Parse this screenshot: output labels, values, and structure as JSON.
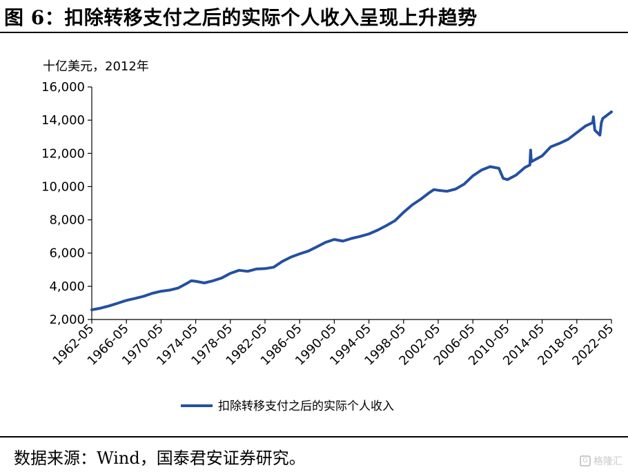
{
  "header": {
    "title": "图 6：扣除转移支付之后的实际个人收入呈现上升趋势"
  },
  "footer": {
    "source": "数据来源：Wind，国泰君安证券研究。",
    "watermark_text": "格隆汇",
    "watermark_icon": "G"
  },
  "colors": {
    "series": "#2450a0",
    "axis": "#000000"
  },
  "chart_data": {
    "type": "line",
    "title": "",
    "unit_label": "十亿美元，2012年",
    "xlabel": "",
    "ylabel": "",
    "x_start": "1962-05",
    "x_end": "2022-05",
    "x_ticks": [
      "1962-05",
      "1966-05",
      "1970-05",
      "1974-05",
      "1978-05",
      "1982-05",
      "1986-05",
      "1990-05",
      "1994-05",
      "1998-05",
      "2002-05",
      "2006-05",
      "2010-05",
      "2014-05",
      "2018-05",
      "2022-05"
    ],
    "ylim": [
      2000,
      16000
    ],
    "y_ticks": [
      "2,000",
      "4,000",
      "6,000",
      "8,000",
      "10,000",
      "12,000",
      "14,000",
      "16,000"
    ],
    "y_tick_values": [
      2000,
      4000,
      6000,
      8000,
      10000,
      12000,
      14000,
      16000
    ],
    "grid": false,
    "legend_position": "bottom-center",
    "series": [
      {
        "name": "扣除转移支付之后的实际个人收入",
        "points": [
          [
            "1962-05",
            2580
          ],
          [
            "1963-05",
            2680
          ],
          [
            "1964-05",
            2820
          ],
          [
            "1965-05",
            2980
          ],
          [
            "1966-05",
            3150
          ],
          [
            "1967-05",
            3270
          ],
          [
            "1968-05",
            3400
          ],
          [
            "1969-05",
            3580
          ],
          [
            "1970-05",
            3700
          ],
          [
            "1971-05",
            3770
          ],
          [
            "1972-05",
            3900
          ],
          [
            "1973-05",
            4180
          ],
          [
            "1973-11",
            4330
          ],
          [
            "1974-05",
            4300
          ],
          [
            "1975-05",
            4200
          ],
          [
            "1976-05",
            4330
          ],
          [
            "1977-05",
            4500
          ],
          [
            "1978-05",
            4780
          ],
          [
            "1979-05",
            4960
          ],
          [
            "1980-05",
            4900
          ],
          [
            "1981-05",
            5040
          ],
          [
            "1982-05",
            5060
          ],
          [
            "1983-05",
            5150
          ],
          [
            "1984-05",
            5500
          ],
          [
            "1985-05",
            5760
          ],
          [
            "1986-05",
            5950
          ],
          [
            "1987-05",
            6120
          ],
          [
            "1988-05",
            6380
          ],
          [
            "1989-05",
            6650
          ],
          [
            "1990-05",
            6820
          ],
          [
            "1991-05",
            6720
          ],
          [
            "1992-05",
            6880
          ],
          [
            "1993-05",
            7000
          ],
          [
            "1994-05",
            7150
          ],
          [
            "1995-05",
            7380
          ],
          [
            "1996-05",
            7650
          ],
          [
            "1997-05",
            7950
          ],
          [
            "1998-05",
            8450
          ],
          [
            "1999-05",
            8900
          ],
          [
            "2000-05",
            9250
          ],
          [
            "2001-05",
            9650
          ],
          [
            "2001-11",
            9820
          ],
          [
            "2002-05",
            9780
          ],
          [
            "2003-05",
            9720
          ],
          [
            "2004-05",
            9850
          ],
          [
            "2005-05",
            10150
          ],
          [
            "2006-05",
            10650
          ],
          [
            "2007-05",
            11000
          ],
          [
            "2008-05",
            11200
          ],
          [
            "2009-05",
            11100
          ],
          [
            "2009-11",
            10500
          ],
          [
            "2010-05",
            10420
          ],
          [
            "2011-05",
            10700
          ],
          [
            "2012-05",
            11150
          ],
          [
            "2012-12",
            11300
          ],
          [
            "2013-01",
            12200
          ],
          [
            "2013-02",
            11500
          ],
          [
            "2014-05",
            11850
          ],
          [
            "2015-05",
            12400
          ],
          [
            "2016-05",
            12600
          ],
          [
            "2017-05",
            12850
          ],
          [
            "2018-05",
            13250
          ],
          [
            "2019-05",
            13650
          ],
          [
            "2020-03",
            13850
          ],
          [
            "2020-04",
            14200
          ],
          [
            "2020-06",
            13400
          ],
          [
            "2021-01",
            13100
          ],
          [
            "2021-03",
            13850
          ],
          [
            "2021-05",
            14100
          ],
          [
            "2022-05",
            14500
          ]
        ]
      }
    ]
  }
}
